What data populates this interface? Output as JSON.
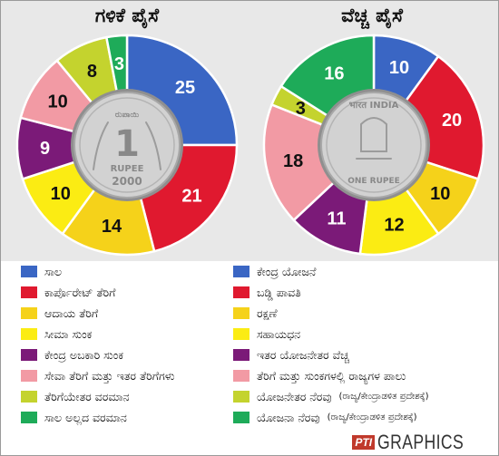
{
  "chart_data": [
    {
      "type": "pie",
      "title": "ಗಳಿಕೆ ಪೈಸೆ",
      "labels": [
        "ಸಾಲ",
        "ಕಾರ್ಪೊರೇಟ್ ತೆರಿಗೆ",
        "ಆದಾಯ ತೆರಿಗೆ",
        "ಸೀಮಾ ಸುಂಕ",
        "ಕೇಂದ್ರ ಅಬಕಾರಿ ಸುಂಕ",
        "ಸೇವಾ ತೆರಿಗೆ ಮತ್ತು ಇತರ ತೆರಿಗೆಗಳು",
        "ತೆರಿಗೆಯೇತರ ವರಮಾನ",
        "ಸಾಲ ಅಲ್ಲದ ವರಮಾನ"
      ],
      "values": [
        25,
        21,
        14,
        10,
        9,
        10,
        8,
        3
      ],
      "colors": [
        "#3a66c4",
        "#e0192f",
        "#f5d21a",
        "#fbec13",
        "#7b1a78",
        "#f29aa4",
        "#c4d32e",
        "#1eab59"
      ]
    },
    {
      "type": "pie",
      "title": "ವೆಚ್ಚ ಪೈಸೆ",
      "labels": [
        "ಕೇಂದ್ರ ಯೋಜನೆ",
        "ಬಡ್ಡಿ ಪಾವತಿ",
        "ರಕ್ಷಣೆ",
        "ಸಹಾಯಧನ",
        "ಇತರ ಯೋಜನೇತರ ವೆಚ್ಚ",
        "ತೆರಿಗೆ ಮತ್ತು ಸುಂಕಗಳಲ್ಲಿ ರಾಜ್ಯಗಳ ಪಾಲು",
        "ಯೋಜನೇತರ ನೆರವು",
        "ಯೋಜನಾ ನೆರವು"
      ],
      "values": [
        10,
        20,
        10,
        12,
        11,
        18,
        3,
        16
      ],
      "colors": [
        "#3a66c4",
        "#e0192f",
        "#f5d21a",
        "#fbec13",
        "#7b1a78",
        "#f29aa4",
        "#c4d32e",
        "#1eab59"
      ]
    }
  ],
  "legend": {
    "left": [
      {
        "label": "ಸಾಲ",
        "color": "#3a66c4"
      },
      {
        "label": "ಕಾರ್ಪೊರೇಟ್ ತೆರಿಗೆ",
        "color": "#e0192f"
      },
      {
        "label": "ಆದಾಯ ತೆರಿಗೆ",
        "color": "#f5d21a"
      },
      {
        "label": "ಸೀಮಾ ಸುಂಕ",
        "color": "#fbec13"
      },
      {
        "label": "ಕೇಂದ್ರ ಅಬಕಾರಿ ಸುಂಕ",
        "color": "#7b1a78"
      },
      {
        "label": "ಸೇವಾ ತೆರಿಗೆ ಮತ್ತು ಇತರ ತೆರಿಗೆಗಳು",
        "color": "#f29aa4"
      },
      {
        "label": "ತೆರಿಗೆಯೇತರ ವರಮಾನ",
        "color": "#c4d32e"
      },
      {
        "label": "ಸಾಲ ಅಲ್ಲದ ವರಮಾನ",
        "color": "#1eab59"
      }
    ],
    "right": [
      {
        "label": "ಕೇಂದ್ರ ಯೋಜನೆ",
        "note": "",
        "color": "#3a66c4"
      },
      {
        "label": "ಬಡ್ಡಿ ಪಾವತಿ",
        "note": "",
        "color": "#e0192f"
      },
      {
        "label": "ರಕ್ಷಣೆ",
        "note": "",
        "color": "#f5d21a"
      },
      {
        "label": "ಸಹಾಯಧನ",
        "note": "",
        "color": "#fbec13"
      },
      {
        "label": "ಇತರ ಯೋಜನೇತರ ವೆಚ್ಚ",
        "note": "",
        "color": "#7b1a78"
      },
      {
        "label": "ತೆರಿಗೆ ಮತ್ತು ಸುಂಕಗಳಲ್ಲಿ ರಾಜ್ಯಗಳ ಪಾಲು",
        "note": "",
        "color": "#f29aa4"
      },
      {
        "label": "ಯೋಜನೇತರ ನೆರವು",
        "note": "(ರಾಜ್ಯ/ಕೇಂದ್ರಾಡಳಿತ ಪ್ರದೇಶಕ್ಕೆ)",
        "color": "#c4d32e"
      },
      {
        "label": "ಯೋಜನಾ ನೆರವು",
        "note": "(ರಾಜ್ಯ/ಕೇಂದ್ರಾಡಳಿತ ಪ್ರದೇಶಕ್ಕೆ)",
        "color": "#1eab59"
      }
    ]
  },
  "coins": {
    "left": {
      "top_text": "ರುಪಾಯಿ",
      "value": "1",
      "unit": "RUPEE",
      "year": "2000"
    },
    "right": {
      "top_text": "भारत INDIA",
      "bottom_text": "ONE RUPEE"
    }
  },
  "credit": {
    "logo": "PTI",
    "text": "GRAPHICS"
  },
  "colors": {
    "background_top": "#e8e8e8",
    "label_dark": "#111111",
    "label_light": "#ffffff"
  }
}
